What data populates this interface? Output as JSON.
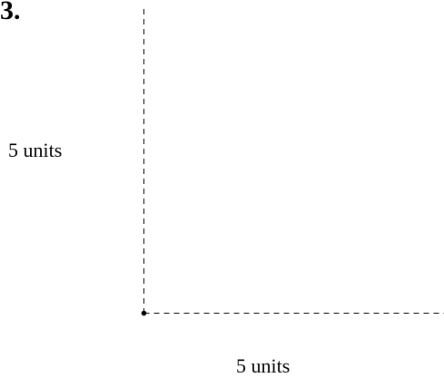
{
  "problem": {
    "number": "3."
  },
  "diagram": {
    "vertical_side": {
      "label": "5 units"
    },
    "horizontal_side": {
      "label": "5 units"
    },
    "line_style": "dashed",
    "colors": {
      "line": "#000000",
      "text": "#000000",
      "background": "#ffffff"
    }
  }
}
